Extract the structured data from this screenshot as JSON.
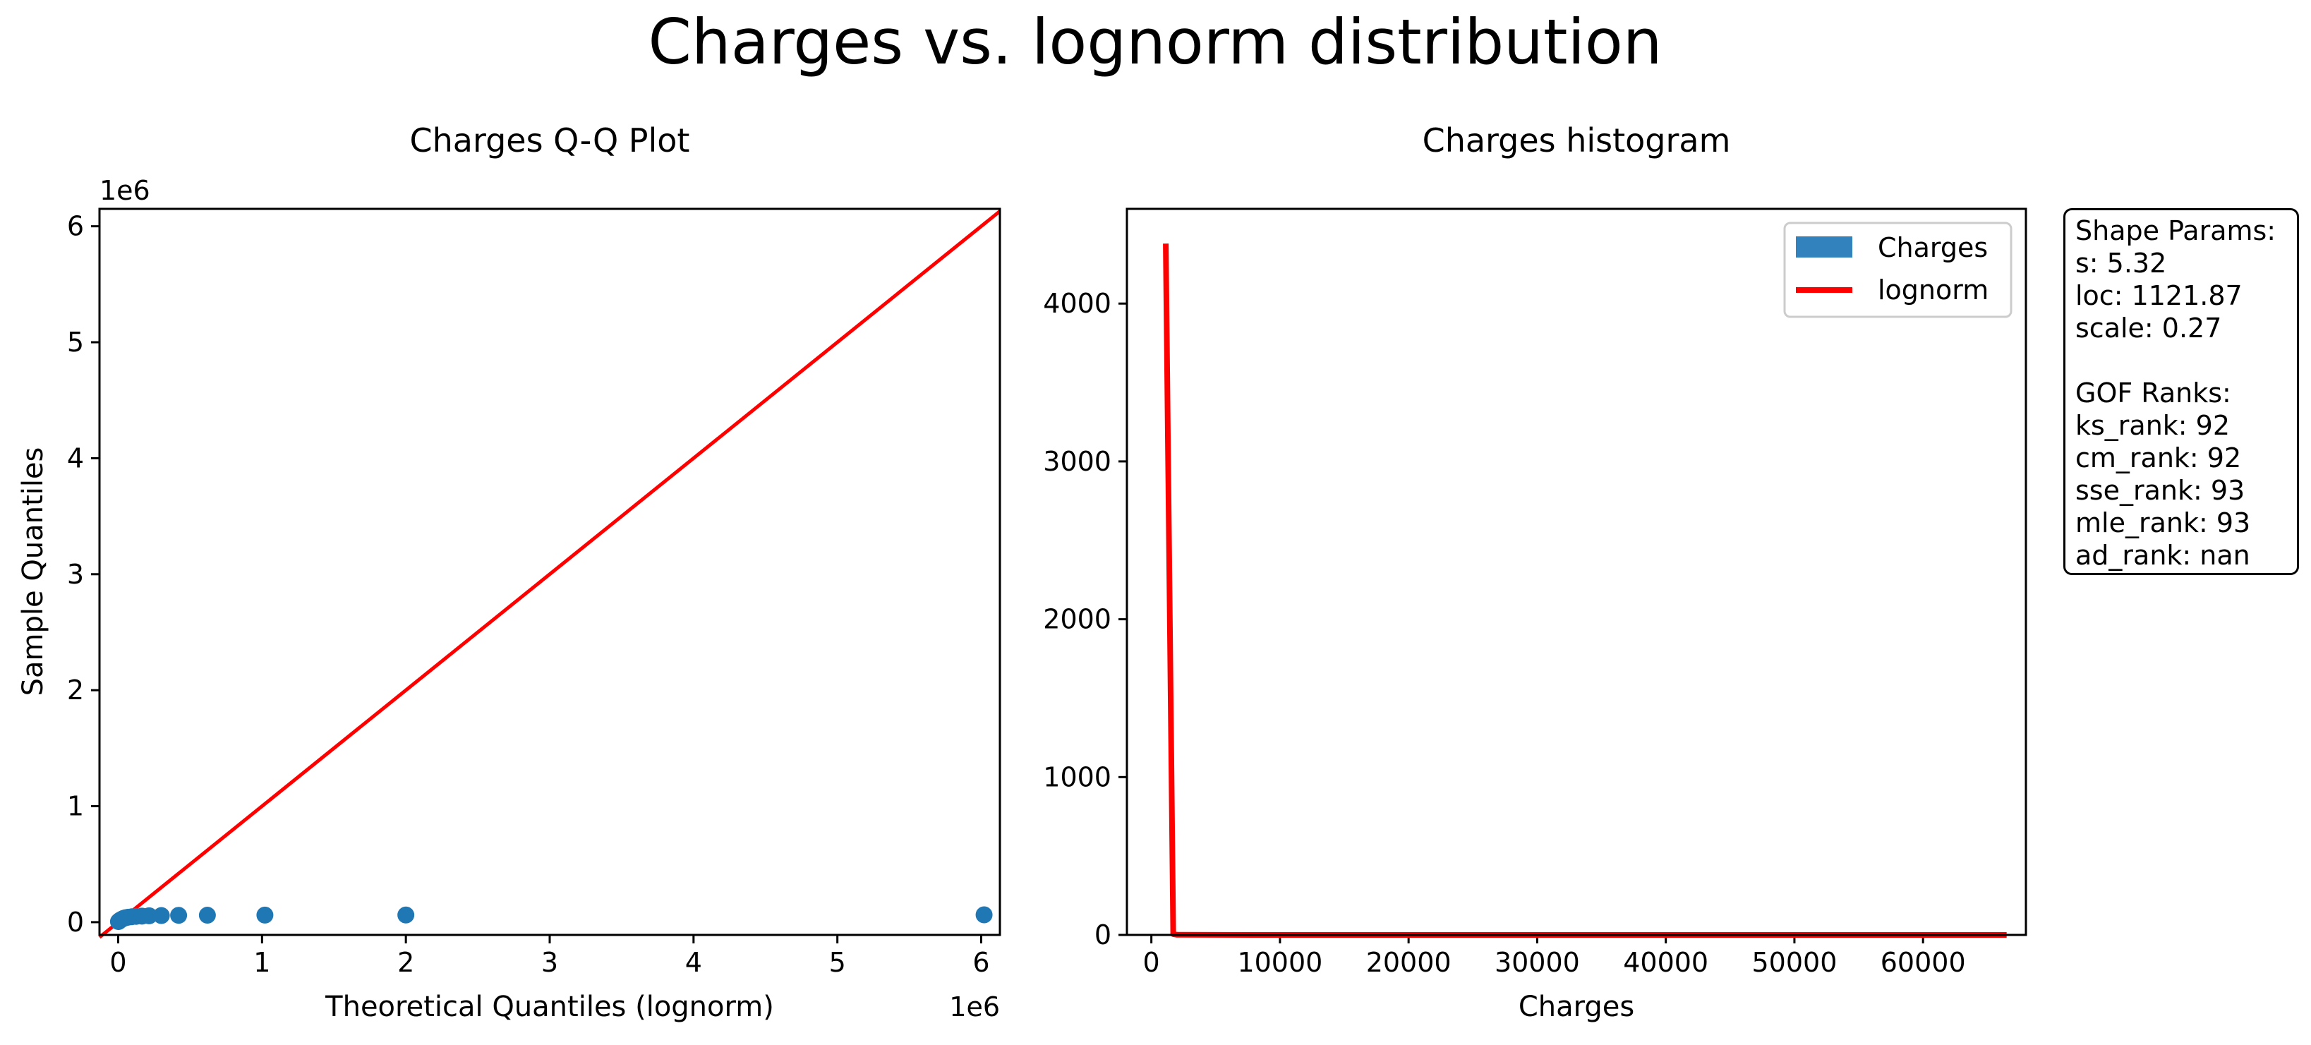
{
  "figure": {
    "title": "Charges vs. lognorm distribution"
  },
  "qq_plot": {
    "title": "Charges Q-Q Plot",
    "xlabel": "Theoretical Quantiles (lognorm)",
    "ylabel": "Sample Quantiles",
    "x_offset_label": "1e6",
    "y_offset_label": "1e6",
    "x_ticks": [
      "0",
      "1",
      "2",
      "3",
      "4",
      "5",
      "6"
    ],
    "y_ticks": [
      "0",
      "1",
      "2",
      "3",
      "4",
      "5",
      "6"
    ],
    "colors": {
      "points": "#1f77b4",
      "reference_line": "#ff0000"
    }
  },
  "histogram": {
    "title": "Charges histogram",
    "xlabel": "Charges",
    "x_ticks": [
      "0",
      "10000",
      "20000",
      "30000",
      "40000",
      "50000",
      "60000"
    ],
    "y_ticks": [
      "0",
      "1000",
      "2000",
      "3000",
      "4000"
    ],
    "legend": {
      "hist_label": "Charges",
      "line_label": "lognorm",
      "placement": "upper right"
    },
    "colors": {
      "bars": "#3182bd",
      "pdf_line": "#ff0000"
    }
  },
  "info_box": {
    "shape_header": "Shape Params:",
    "s": "s: 5.32",
    "loc": "loc: 1121.87",
    "scale": "scale: 0.27",
    "gof_header": "GOF Ranks:",
    "ks_rank": "ks_rank: 92",
    "cm_rank": "cm_rank: 92",
    "sse_rank": "sse_rank: 93",
    "mle_rank": "mle_rank: 93",
    "ad_rank": "ad_rank: nan"
  },
  "chart_data": [
    {
      "type": "scatter",
      "title": "Charges Q-Q Plot",
      "xlabel": "Theoretical Quantiles (lognorm)",
      "ylabel": "Sample Quantiles",
      "xlim": [
        -130000,
        6130000
      ],
      "ylim": [
        -110000,
        6150000
      ],
      "grid": false,
      "series": [
        {
          "x": [
            2000,
            8000,
            15000,
            25000,
            35000,
            50000,
            70000,
            95000,
            125000,
            165000,
            215000,
            300000,
            420000,
            620000,
            1020000,
            2000000,
            6020000
          ],
          "y": [
            5000,
            12000,
            18000,
            25000,
            32000,
            38000,
            43000,
            47000,
            50000,
            52000,
            55000,
            57000,
            59000,
            60000,
            61000,
            62000,
            63500
          ]
        },
        {
          "x": [
            -130000,
            6130000
          ],
          "y": [
            -130000,
            6130000
          ]
        }
      ]
    },
    {
      "type": "line",
      "title": "Charges histogram",
      "xlabel": "Charges",
      "xlim": [
        -1900,
        68000
      ],
      "ylim": [
        0,
        4600
      ],
      "grid": false,
      "legend": "upper right",
      "series": [
        {
          "name": "lognorm",
          "x": [
            1122,
            1700,
            2000,
            10000,
            20000,
            30000,
            40000,
            50000,
            60000,
            66500
          ],
          "y": [
            4380,
            5,
            1,
            0,
            0,
            0,
            0,
            0,
            0,
            0
          ]
        }
      ]
    }
  ]
}
